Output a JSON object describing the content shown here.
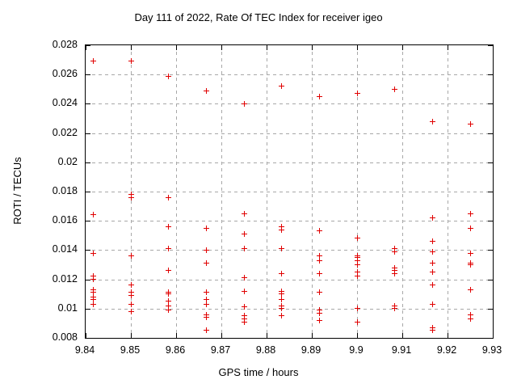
{
  "chart_data": {
    "type": "scatter",
    "title": "Day 111 of 2022, Rate Of TEC Index for receiver igeo",
    "xlabel": "GPS time / hours",
    "ylabel": "ROTI / TECUs",
    "xlim": [
      9.84,
      9.93
    ],
    "ylim": [
      0.008,
      0.028
    ],
    "x_tick_labels": [
      "9.84",
      "9.85",
      "9.86",
      "9.87",
      "9.88",
      "9.89",
      "9.9",
      "9.91",
      "9.92",
      "9.93"
    ],
    "y_tick_labels": [
      "0.008",
      "0.01",
      "0.012",
      "0.014",
      "0.016",
      "0.018",
      "0.02",
      "0.022",
      "0.024",
      "0.026",
      "0.028"
    ],
    "grid": true,
    "legend": "none",
    "marker_symbol": "plus",
    "marker_color": "#e00000",
    "grid_color": "#a8a8a8",
    "frame_color": "#000000",
    "series": [
      {
        "name": "ROTI",
        "points": [
          [
            9.8417,
            0.0269
          ],
          [
            9.8417,
            0.0164
          ],
          [
            9.8417,
            0.0138
          ],
          [
            9.8417,
            0.0122
          ],
          [
            9.8417,
            0.012
          ],
          [
            9.8417,
            0.0113
          ],
          [
            9.8417,
            0.0111
          ],
          [
            9.8417,
            0.0108
          ],
          [
            9.8417,
            0.0106
          ],
          [
            9.8417,
            0.0103
          ],
          [
            9.85,
            0.0269
          ],
          [
            9.85,
            0.0178
          ],
          [
            9.85,
            0.0176
          ],
          [
            9.85,
            0.0136
          ],
          [
            9.85,
            0.0116
          ],
          [
            9.85,
            0.0111
          ],
          [
            9.85,
            0.0109
          ],
          [
            9.85,
            0.0103
          ],
          [
            9.85,
            0.0098
          ],
          [
            9.8583,
            0.0259
          ],
          [
            9.8583,
            0.0176
          ],
          [
            9.8583,
            0.0156
          ],
          [
            9.8583,
            0.0141
          ],
          [
            9.8583,
            0.0126
          ],
          [
            9.8583,
            0.0111
          ],
          [
            9.8583,
            0.011
          ],
          [
            9.8583,
            0.0105
          ],
          [
            9.8583,
            0.0102
          ],
          [
            9.8583,
            0.0099
          ],
          [
            9.8667,
            0.0249
          ],
          [
            9.8667,
            0.0155
          ],
          [
            9.8667,
            0.014
          ],
          [
            9.8667,
            0.0131
          ],
          [
            9.8667,
            0.0111
          ],
          [
            9.8667,
            0.0106
          ],
          [
            9.8667,
            0.0103
          ],
          [
            9.8667,
            0.0096
          ],
          [
            9.8667,
            0.0094
          ],
          [
            9.8667,
            0.0085
          ],
          [
            9.875,
            0.024
          ],
          [
            9.875,
            0.0165
          ],
          [
            9.875,
            0.0151
          ],
          [
            9.875,
            0.0141
          ],
          [
            9.875,
            0.0121
          ],
          [
            9.875,
            0.0112
          ],
          [
            9.875,
            0.0101
          ],
          [
            9.875,
            0.0095
          ],
          [
            9.875,
            0.0093
          ],
          [
            9.875,
            0.0091
          ],
          [
            9.8833,
            0.0252
          ],
          [
            9.8833,
            0.0156
          ],
          [
            9.8833,
            0.0154
          ],
          [
            9.8833,
            0.0141
          ],
          [
            9.8833,
            0.0124
          ],
          [
            9.8833,
            0.0112
          ],
          [
            9.8833,
            0.011
          ],
          [
            9.8833,
            0.0106
          ],
          [
            9.8833,
            0.0102
          ],
          [
            9.8833,
            0.01
          ],
          [
            9.8833,
            0.0095
          ],
          [
            9.8917,
            0.0245
          ],
          [
            9.8917,
            0.0153
          ],
          [
            9.8917,
            0.0136
          ],
          [
            9.8917,
            0.0133
          ],
          [
            9.8917,
            0.0124
          ],
          [
            9.8917,
            0.0111
          ],
          [
            9.8917,
            0.0099
          ],
          [
            9.8917,
            0.0097
          ],
          [
            9.8917,
            0.0092
          ],
          [
            9.9,
            0.0247
          ],
          [
            9.9,
            0.0148
          ],
          [
            9.9,
            0.0136
          ],
          [
            9.9,
            0.0135
          ],
          [
            9.9,
            0.0133
          ],
          [
            9.9,
            0.013
          ],
          [
            9.9,
            0.0125
          ],
          [
            9.9,
            0.0122
          ],
          [
            9.9,
            0.01
          ],
          [
            9.9,
            0.0091
          ],
          [
            9.9083,
            0.025
          ],
          [
            9.9083,
            0.0141
          ],
          [
            9.9083,
            0.0139
          ],
          [
            9.9083,
            0.0128
          ],
          [
            9.9083,
            0.0126
          ],
          [
            9.9083,
            0.0124
          ],
          [
            9.9083,
            0.0102
          ],
          [
            9.9083,
            0.01
          ],
          [
            9.9167,
            0.0228
          ],
          [
            9.9167,
            0.0162
          ],
          [
            9.9167,
            0.0146
          ],
          [
            9.9167,
            0.0139
          ],
          [
            9.9167,
            0.0131
          ],
          [
            9.9167,
            0.0125
          ],
          [
            9.9167,
            0.0116
          ],
          [
            9.9167,
            0.0103
          ],
          [
            9.9167,
            0.0087
          ],
          [
            9.9167,
            0.0085
          ],
          [
            9.925,
            0.0226
          ],
          [
            9.925,
            0.0165
          ],
          [
            9.925,
            0.0155
          ],
          [
            9.925,
            0.0138
          ],
          [
            9.925,
            0.0131
          ],
          [
            9.925,
            0.013
          ],
          [
            9.925,
            0.0113
          ],
          [
            9.925,
            0.0096
          ],
          [
            9.925,
            0.0093
          ]
        ]
      }
    ]
  }
}
